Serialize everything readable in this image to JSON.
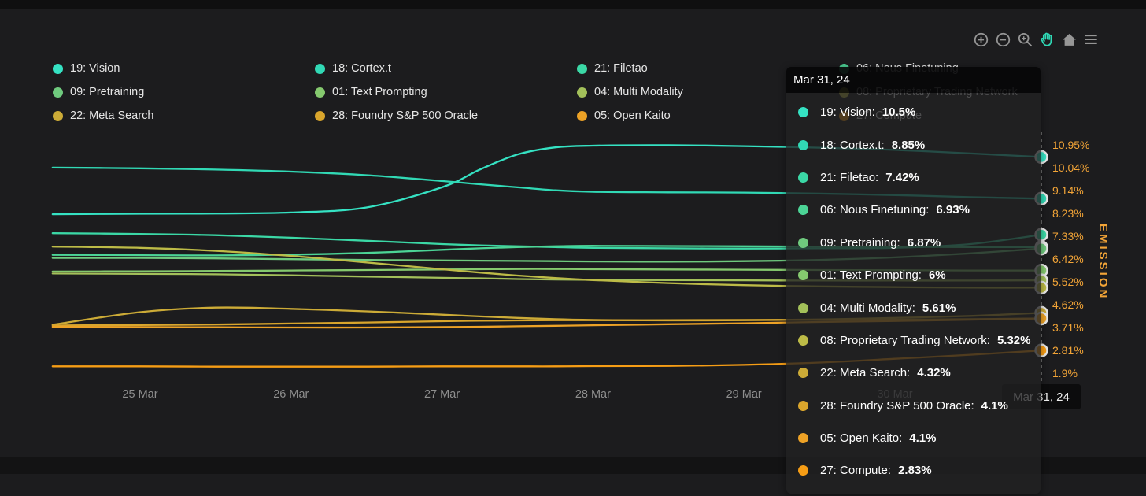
{
  "page": {
    "background": "#1c1c1e",
    "accent_orange": "#f2a437",
    "accent_teal": "#2fd9b6"
  },
  "toolbar": {
    "icons": [
      {
        "name": "zoom-in-icon",
        "color": "#969696"
      },
      {
        "name": "zoom-out-icon",
        "color": "#969696"
      },
      {
        "name": "zoom-select-icon",
        "color": "#969696"
      },
      {
        "name": "pan-hand-icon",
        "color": "#2fd9b6",
        "active": true
      },
      {
        "name": "home-icon",
        "color": "#969696"
      },
      {
        "name": "menu-icon",
        "color": "#969696"
      }
    ]
  },
  "legend": {
    "items": [
      {
        "label": "19: Vision",
        "color": "#35e2c3"
      },
      {
        "label": "18: Cortex.t",
        "color": "#31d9b5"
      },
      {
        "label": "21: Filetao",
        "color": "#3bd8a6"
      },
      {
        "label": "06: Nous Finetuning",
        "color": "#4cd496"
      },
      {
        "label": "09: Pretraining",
        "color": "#6fca7e"
      },
      {
        "label": "01: Text Prompting",
        "color": "#85c96e"
      },
      {
        "label": "04: Multi Modality",
        "color": "#a3c05a"
      },
      {
        "label": "08: Proprietary Trading Network",
        "color": "#bdbb47"
      },
      {
        "label": "22: Meta Search",
        "color": "#ccab37"
      },
      {
        "label": "28: Foundry S&P 500 Oracle",
        "color": "#d9a52c"
      },
      {
        "label": "05: Open Kaito",
        "color": "#eda226"
      },
      {
        "label": "27: Compute",
        "color": "#f69d15"
      }
    ]
  },
  "tooltip": {
    "title": "Mar 31, 24",
    "rows": [
      {
        "label": "19: Vision:",
        "value": "10.5%",
        "color": "#35e2c3"
      },
      {
        "label": "18: Cortex.t:",
        "value": "8.85%",
        "color": "#31d9b5"
      },
      {
        "label": "21: Filetao:",
        "value": "7.42%",
        "color": "#3bd8a6"
      },
      {
        "label": "06: Nous Finetuning:",
        "value": "6.93%",
        "color": "#4cd496"
      },
      {
        "label": "09: Pretraining:",
        "value": "6.87%",
        "color": "#6fca7e"
      },
      {
        "label": "01: Text Prompting:",
        "value": "6%",
        "color": "#85c96e"
      },
      {
        "label": "04: Multi Modality:",
        "value": "5.61%",
        "color": "#a3c05a"
      },
      {
        "label": "08: Proprietary Trading Network:",
        "value": "5.32%",
        "color": "#bdbb47"
      },
      {
        "label": "22: Meta Search:",
        "value": "4.32%",
        "color": "#ccab37"
      },
      {
        "label": "28: Foundry S&P 500 Oracle:",
        "value": "4.1%",
        "color": "#d9a52c"
      },
      {
        "label": "05: Open Kaito:",
        "value": "4.1%",
        "color": "#eda226"
      },
      {
        "label": "27: Compute:",
        "value": "2.83%",
        "color": "#f69d15"
      }
    ]
  },
  "crosshair": {
    "date_label": "Mar 31, 24"
  },
  "chart_data": {
    "type": "line",
    "title": "",
    "xlabel": "",
    "ylabel": "EMISSION",
    "grid": false,
    "legend_position": "top",
    "x_unit": "day of March 2024 (fractional)",
    "x": [
      24.42,
      25,
      25.5,
      26,
      26.5,
      27,
      27.25,
      27.5,
      27.75,
      28,
      28.5,
      29,
      29.5,
      30,
      30.5,
      30.97
    ],
    "x_tick_days": [
      25,
      26,
      27,
      28,
      29,
      30
    ],
    "x_tick_labels": [
      "25 Mar",
      "26 Mar",
      "27 Mar",
      "28 Mar",
      "29 Mar",
      "30 Mar"
    ],
    "x_highlight_label": "Mar 31, 24",
    "y_tick_values": [
      10.95,
      10.04,
      9.14,
      8.23,
      7.33,
      6.42,
      5.52,
      4.62,
      3.71,
      2.81,
      1.9
    ],
    "y_tick_labels": [
      "10.95%",
      "10.04%",
      "9.14%",
      "8.23%",
      "7.33%",
      "6.42%",
      "5.52%",
      "4.62%",
      "3.71%",
      "2.81%",
      "1.9%"
    ],
    "ylim": [
      1.5,
      11.4
    ],
    "series": [
      {
        "name": "19: Vision",
        "color": "#35e2c3",
        "final": "10.5%",
        "values": [
          8.23,
          8.25,
          8.26,
          8.3,
          8.5,
          9.3,
          10.0,
          10.6,
          10.88,
          10.95,
          10.97,
          10.93,
          10.87,
          10.78,
          10.64,
          10.5
        ]
      },
      {
        "name": "18: Cortex.t",
        "color": "#31d9b5",
        "final": "8.85%",
        "values": [
          10.08,
          10.05,
          10.0,
          9.92,
          9.78,
          9.55,
          9.42,
          9.3,
          9.18,
          9.12,
          9.1,
          9.09,
          9.05,
          8.99,
          8.91,
          8.85
        ]
      },
      {
        "name": "21: Filetao",
        "color": "#3bd8a6",
        "final": "7.42%",
        "values": [
          7.48,
          7.45,
          7.4,
          7.3,
          7.18,
          7.05,
          7.0,
          6.96,
          6.93,
          6.9,
          6.88,
          6.87,
          6.88,
          6.9,
          7.05,
          7.42
        ]
      },
      {
        "name": "06: Nous Finetuning",
        "color": "#4cd496",
        "final": "6.93%",
        "values": [
          6.62,
          6.61,
          6.6,
          6.63,
          6.7,
          6.82,
          6.88,
          6.93,
          6.96,
          6.98,
          6.97,
          6.96,
          6.95,
          6.94,
          6.93,
          6.93
        ]
      },
      {
        "name": "09: Pretraining",
        "color": "#6fca7e",
        "final": "6.87%",
        "values": [
          6.5,
          6.5,
          6.48,
          6.45,
          6.42,
          6.4,
          6.39,
          6.38,
          6.37,
          6.36,
          6.35,
          6.37,
          6.42,
          6.52,
          6.68,
          6.87
        ]
      },
      {
        "name": "01: Text Prompting",
        "color": "#85c96e",
        "final": "6%",
        "values": [
          5.96,
          5.97,
          5.98,
          6.0,
          6.02,
          6.04,
          6.05,
          6.06,
          6.06,
          6.05,
          6.04,
          6.03,
          6.02,
          6.01,
          6.0,
          6.0
        ]
      },
      {
        "name": "04: Multi Modality",
        "color": "#a3c05a",
        "final": "5.61%",
        "values": [
          5.88,
          5.87,
          5.85,
          5.81,
          5.76,
          5.71,
          5.69,
          5.66,
          5.64,
          5.63,
          5.62,
          5.61,
          5.6,
          5.6,
          5.6,
          5.61
        ]
      },
      {
        "name": "08: Proprietary Trading Network",
        "color": "#bdbb47",
        "final": "5.32%",
        "values": [
          6.95,
          6.9,
          6.78,
          6.58,
          6.32,
          6.05,
          5.92,
          5.8,
          5.7,
          5.62,
          5.5,
          5.42,
          5.37,
          5.34,
          5.32,
          5.32
        ]
      },
      {
        "name": "22: Meta Search",
        "color": "#ccab37",
        "final": "4.32%",
        "values": [
          3.85,
          4.35,
          4.53,
          4.48,
          4.38,
          4.25,
          4.18,
          4.12,
          4.07,
          4.04,
          4.02,
          4.03,
          4.06,
          4.12,
          4.2,
          4.32
        ]
      },
      {
        "name": "28: Foundry S&P 500 Oracle",
        "color": "#d9a52c",
        "final": "4.1%",
        "values": [
          3.82,
          3.84,
          3.86,
          3.9,
          3.94,
          3.99,
          4.01,
          4.02,
          4.03,
          4.03,
          4.03,
          4.04,
          4.04,
          4.05,
          4.07,
          4.1
        ]
      },
      {
        "name": "05: Open Kaito",
        "color": "#eda226",
        "final": "4.1%",
        "values": [
          3.77,
          3.76,
          3.75,
          3.74,
          3.74,
          3.76,
          3.77,
          3.79,
          3.81,
          3.83,
          3.87,
          3.91,
          3.96,
          4.0,
          4.05,
          4.1
        ]
      },
      {
        "name": "27: Compute",
        "color": "#f69d15",
        "final": "2.83%",
        "values": [
          2.2,
          2.2,
          2.19,
          2.19,
          2.19,
          2.2,
          2.2,
          2.2,
          2.2,
          2.21,
          2.22,
          2.26,
          2.35,
          2.5,
          2.66,
          2.83
        ]
      }
    ]
  }
}
